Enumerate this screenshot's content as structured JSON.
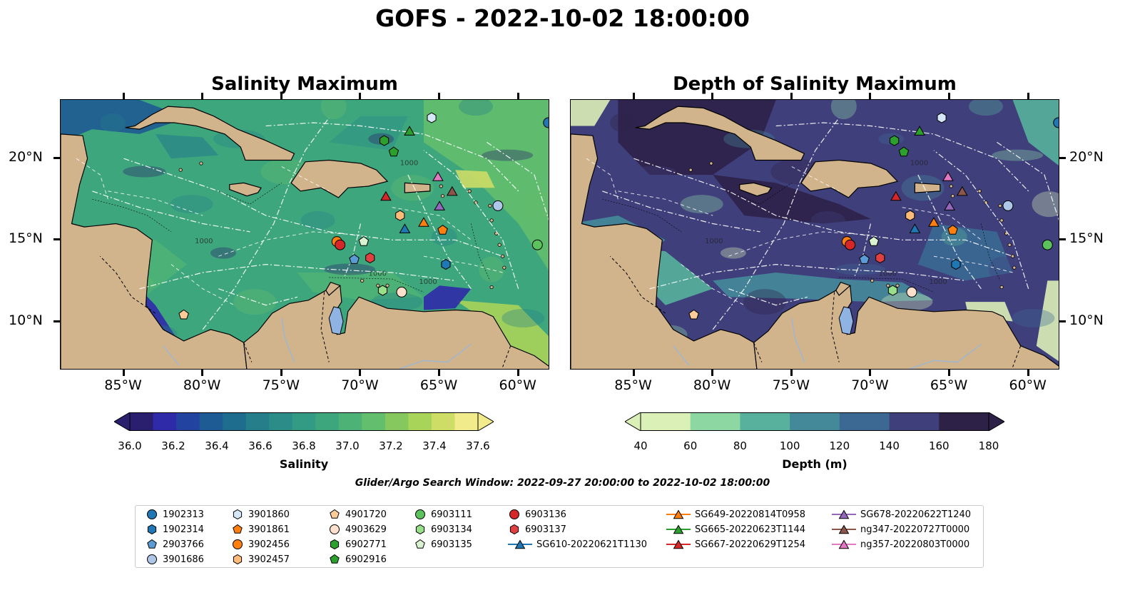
{
  "title": "GOFS - 2022-10-02 18:00:00",
  "panels": [
    {
      "title": "Salinity Maximum",
      "colorbar": {
        "label": "Salinity",
        "ticks": [
          "36.0",
          "36.2",
          "36.4",
          "36.6",
          "36.8",
          "37.0",
          "37.2",
          "37.4",
          "37.6"
        ],
        "colors": [
          "#2a1e6e",
          "#2f2aa8",
          "#2244a0",
          "#1e5b94",
          "#1e6d8e",
          "#257e8a",
          "#2c8c87",
          "#339a83",
          "#3ea67d",
          "#4db276",
          "#63be6d",
          "#86c85e",
          "#a8d45a",
          "#cddd66",
          "#f1eb8b"
        ],
        "extend": "both"
      }
    },
    {
      "title": "Depth of Salinity Maximum",
      "colorbar": {
        "label": "Depth (m)",
        "ticks": [
          "40",
          "60",
          "80",
          "100",
          "120",
          "140",
          "160",
          "180"
        ],
        "colors": [
          "#dbf0b7",
          "#8dd7a2",
          "#57b19c",
          "#44899a",
          "#3b6994",
          "#3f3f7c",
          "#2e2148"
        ],
        "extend": "both"
      }
    }
  ],
  "lat_labels": [
    "20°N",
    "15°N",
    "10°N"
  ],
  "lon_labels": [
    "85°W",
    "80°W",
    "75°W",
    "70°W",
    "65°W",
    "60°W"
  ],
  "map_extent": {
    "lon": [
      -89,
      -58
    ],
    "lat": [
      7,
      23.6
    ]
  },
  "bathymetry_labels": [
    "1000",
    "1000",
    "1000",
    "1000"
  ],
  "search_window": "Glider/Argo Search Window: 2022-09-27 20:00:00 to 2022-10-02 18:00:00",
  "legend": [
    {
      "name": "1902313",
      "marker": "circle",
      "color": "#1f77b4"
    },
    {
      "name": "1902314",
      "marker": "hexagon",
      "color": "#1f77b4"
    },
    {
      "name": "2903766",
      "marker": "pentagon",
      "color": "#5b9bd5"
    },
    {
      "name": "3901686",
      "marker": "circle",
      "color": "#aec7e8"
    },
    {
      "name": "3901860",
      "marker": "hexagon",
      "color": "#d6e8f7"
    },
    {
      "name": "3901861",
      "marker": "pentagon",
      "color": "#ff7f0e"
    },
    {
      "name": "3902456",
      "marker": "circle",
      "color": "#ff7f0e"
    },
    {
      "name": "3902457",
      "marker": "hexagon",
      "color": "#ffbb78"
    },
    {
      "name": "4901720",
      "marker": "pentagon",
      "color": "#ffcc99"
    },
    {
      "name": "4903629",
      "marker": "circle",
      "color": "#ffe0cc"
    },
    {
      "name": "6902771",
      "marker": "hexagon",
      "color": "#2ca02c"
    },
    {
      "name": "6902916",
      "marker": "pentagon",
      "color": "#2ca02c"
    },
    {
      "name": "6903111",
      "marker": "circle",
      "color": "#5cc35c"
    },
    {
      "name": "6903134",
      "marker": "hexagon",
      "color": "#98df8a"
    },
    {
      "name": "6903135",
      "marker": "pentagon",
      "color": "#d9f2d0"
    },
    {
      "name": "6903136",
      "marker": "circle",
      "color": "#d62728"
    },
    {
      "name": "6903137",
      "marker": "hexagon",
      "color": "#e04040"
    },
    {
      "name": "SG610-20220621T1130",
      "marker": "triangle",
      "color": "#1f77b4"
    },
    {
      "name": "SG649-20220814T0958",
      "marker": "triangle",
      "color": "#ff7f0e"
    },
    {
      "name": "SG665-20220623T1144",
      "marker": "triangle",
      "color": "#2ca02c"
    },
    {
      "name": "SG667-20220629T1254",
      "marker": "triangle",
      "color": "#d62728"
    },
    {
      "name": "SG678-20220622T1240",
      "marker": "triangle",
      "color": "#9467bd"
    },
    {
      "name": "ng347-20220727T0000",
      "marker": "triangle",
      "color": "#8c564b"
    },
    {
      "name": "ng357-20220803T0000",
      "marker": "triangle",
      "color": "#e377c2"
    }
  ],
  "observations": [
    {
      "id": "1902313",
      "lon": -58.1,
      "lat": 22.2
    },
    {
      "id": "1902314",
      "lon": -64.6,
      "lat": 13.5
    },
    {
      "id": "2903766",
      "lon": -70.4,
      "lat": 13.8
    },
    {
      "id": "3901686",
      "lon": -61.3,
      "lat": 17.1
    },
    {
      "id": "3901860",
      "lon": -65.5,
      "lat": 22.5
    },
    {
      "id": "3901861",
      "lon": -64.8,
      "lat": 15.6
    },
    {
      "id": "3902456",
      "lon": -71.5,
      "lat": 14.9
    },
    {
      "id": "3902457",
      "lon": -67.5,
      "lat": 16.5
    },
    {
      "id": "4901720",
      "lon": -81.2,
      "lat": 10.4
    },
    {
      "id": "4903629",
      "lon": -67.4,
      "lat": 11.8
    },
    {
      "id": "6902771",
      "lon": -68.5,
      "lat": 21.1
    },
    {
      "id": "6902916",
      "lon": -67.9,
      "lat": 20.4
    },
    {
      "id": "6903111",
      "lon": -58.8,
      "lat": 14.7
    },
    {
      "id": "6903134",
      "lon": -68.6,
      "lat": 11.9
    },
    {
      "id": "6903135",
      "lon": -69.8,
      "lat": 14.9
    },
    {
      "id": "6903136",
      "lon": -71.3,
      "lat": 14.7
    },
    {
      "id": "6903137",
      "lon": -69.4,
      "lat": 13.9
    },
    {
      "id": "SG610-20220621T1130",
      "lon": -67.2,
      "lat": 15.7
    },
    {
      "id": "SG649-20220814T0958",
      "lon": -66.0,
      "lat": 16.1
    },
    {
      "id": "SG665-20220623T1144",
      "lon": -66.9,
      "lat": 21.7
    },
    {
      "id": "SG667-20220629T1254",
      "lon": -68.4,
      "lat": 17.7
    },
    {
      "id": "SG678-20220622T1240",
      "lon": -65.0,
      "lat": 17.1
    },
    {
      "id": "ng347-20220727T0000",
      "lon": -64.2,
      "lat": 18.0
    },
    {
      "id": "ng357-20220803T0000",
      "lon": -65.1,
      "lat": 18.9
    }
  ]
}
